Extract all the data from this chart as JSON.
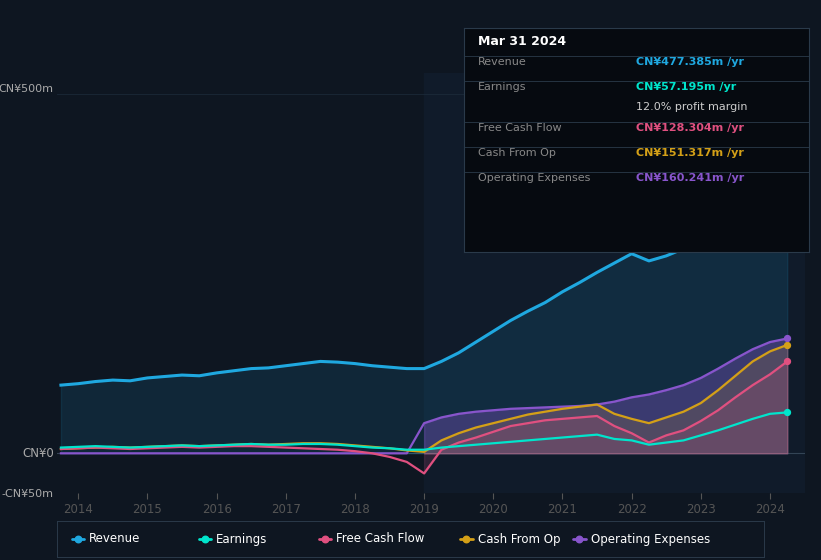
{
  "bg_color": "#0e1621",
  "chart_bg": "#0e1621",
  "dark_panel_color": "#0a0f1a",
  "ylim": [
    -55,
    530
  ],
  "xlim": [
    2013.7,
    2024.5
  ],
  "grid_color": "#1e2d3d",
  "revenue_color": "#1fa8e0",
  "earnings_color": "#00e5cc",
  "fcf_color": "#e05080",
  "cashfromop_color": "#d4a017",
  "opex_color": "#8855cc",
  "shaded_x_start": 2019.0,
  "years": [
    2013.75,
    2014.0,
    2014.25,
    2014.5,
    2014.75,
    2015.0,
    2015.25,
    2015.5,
    2015.75,
    2016.0,
    2016.25,
    2016.5,
    2016.75,
    2017.0,
    2017.25,
    2017.5,
    2017.75,
    2018.0,
    2018.25,
    2018.5,
    2018.75,
    2019.0,
    2019.25,
    2019.5,
    2019.75,
    2020.0,
    2020.25,
    2020.5,
    2020.75,
    2021.0,
    2021.25,
    2021.5,
    2021.75,
    2022.0,
    2022.25,
    2022.5,
    2022.75,
    2023.0,
    2023.25,
    2023.5,
    2023.75,
    2024.0,
    2024.25
  ],
  "revenue": [
    95,
    97,
    100,
    102,
    101,
    105,
    107,
    109,
    108,
    112,
    115,
    118,
    119,
    122,
    125,
    128,
    127,
    125,
    122,
    120,
    118,
    118,
    128,
    140,
    155,
    170,
    185,
    198,
    210,
    225,
    238,
    252,
    265,
    278,
    268,
    275,
    285,
    300,
    320,
    350,
    395,
    445,
    480
  ],
  "earnings": [
    8,
    9,
    10,
    9,
    8,
    9,
    10,
    11,
    10,
    11,
    12,
    13,
    12,
    12,
    13,
    13,
    12,
    10,
    8,
    7,
    5,
    5,
    8,
    10,
    12,
    14,
    16,
    18,
    20,
    22,
    24,
    26,
    20,
    18,
    12,
    15,
    18,
    25,
    32,
    40,
    48,
    55,
    57
  ],
  "fcf": [
    6,
    7,
    8,
    7,
    6,
    7,
    8,
    9,
    8,
    9,
    10,
    10,
    9,
    8,
    7,
    6,
    5,
    3,
    0,
    -5,
    -12,
    -28,
    5,
    15,
    22,
    30,
    38,
    42,
    46,
    48,
    50,
    52,
    38,
    28,
    15,
    25,
    32,
    45,
    60,
    78,
    95,
    110,
    128
  ],
  "cashfromop": [
    6,
    7,
    8,
    9,
    8,
    9,
    10,
    11,
    10,
    11,
    12,
    13,
    12,
    13,
    14,
    14,
    13,
    11,
    9,
    7,
    4,
    2,
    18,
    28,
    36,
    42,
    48,
    54,
    58,
    62,
    65,
    68,
    55,
    48,
    42,
    50,
    58,
    70,
    88,
    108,
    128,
    142,
    151
  ],
  "opex": [
    0,
    0,
    0,
    0,
    0,
    0,
    0,
    0,
    0,
    0,
    0,
    0,
    0,
    0,
    0,
    0,
    0,
    0,
    0,
    0,
    0,
    42,
    50,
    55,
    58,
    60,
    62,
    63,
    64,
    65,
    66,
    68,
    72,
    78,
    82,
    88,
    95,
    105,
    118,
    132,
    145,
    155,
    160
  ],
  "legend_items": [
    {
      "label": "Revenue",
      "color": "#1fa8e0"
    },
    {
      "label": "Earnings",
      "color": "#00e5cc"
    },
    {
      "label": "Free Cash Flow",
      "color": "#e05080"
    },
    {
      "label": "Cash From Op",
      "color": "#d4a017"
    },
    {
      "label": "Operating Expenses",
      "color": "#8855cc"
    }
  ],
  "tooltip": {
    "date": "Mar 31 2024",
    "revenue": "CN¥477.385m",
    "earnings": "CN¥57.195m",
    "profit_margin": "12.0%",
    "fcf": "CN¥128.304m",
    "cashfromop": "CN¥151.317m",
    "opex": "CN¥160.241m"
  },
  "xticks": [
    2014,
    2015,
    2016,
    2017,
    2018,
    2019,
    2020,
    2021,
    2022,
    2023,
    2024
  ],
  "xtick_labels": [
    "2014",
    "2015",
    "2016",
    "2017",
    "2018",
    "2019",
    "2020",
    "2021",
    "2022",
    "2023",
    "2024"
  ]
}
